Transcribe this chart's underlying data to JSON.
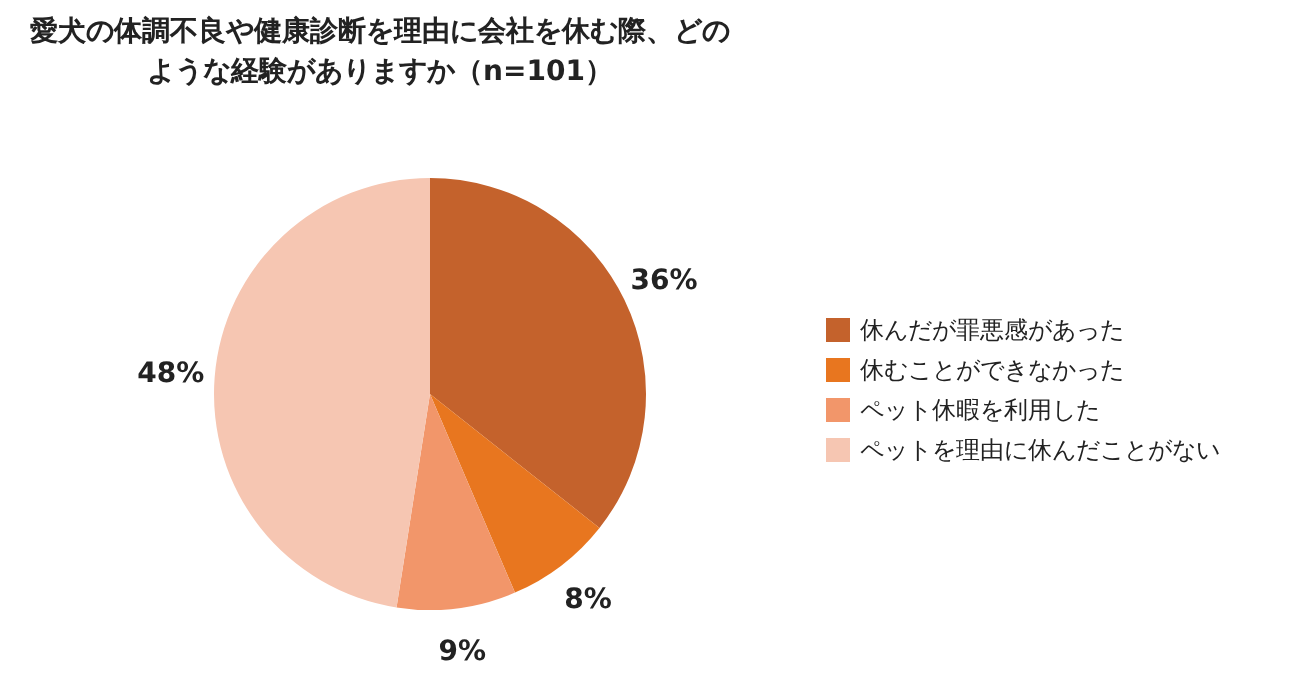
{
  "chart_data": {
    "type": "pie",
    "title": "愛犬の体調不良や健康診断を理由に会社を休む際、どのような経験がありますか（n=101）",
    "categories": [
      "休んだが罪悪感があった",
      "休むことができなかった",
      "ペット休暇を利用した",
      "ペットを理由に休んだことがない"
    ],
    "values": [
      36,
      8,
      9,
      48
    ],
    "colors": [
      "#c4622c",
      "#e8761f",
      "#f2966a",
      "#f6c6b2"
    ],
    "value_labels": [
      "36%",
      "8%",
      "9%",
      "48%"
    ],
    "legend": "right"
  }
}
